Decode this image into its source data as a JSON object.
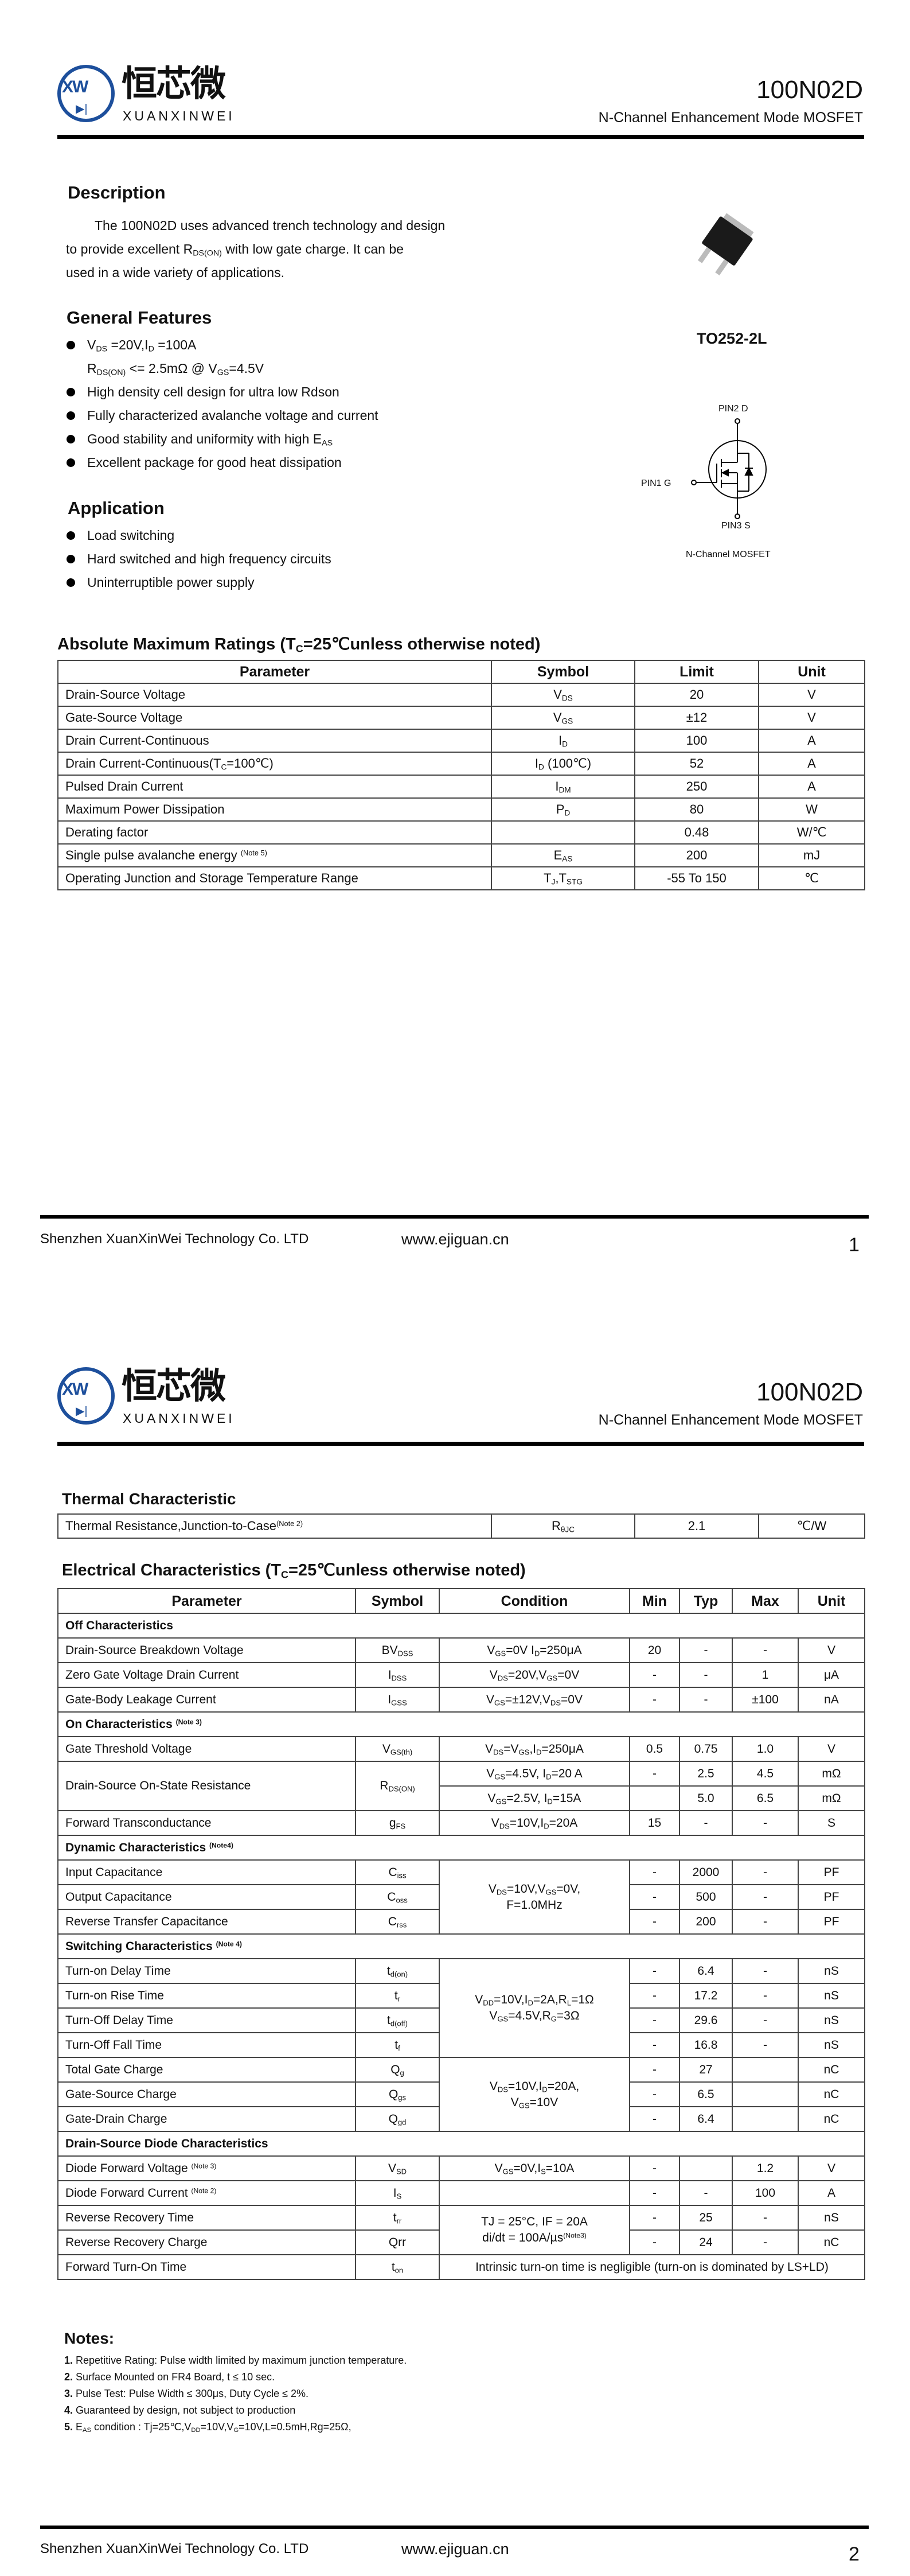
{
  "logo": {
    "abbr": "XW",
    "cn": "恒芯微",
    "en": "XUANXINWEI",
    "color": "#1d4f9c"
  },
  "header": {
    "part": "100N02D",
    "subtitle": "N-Channel Enhancement Mode MOSFET"
  },
  "description": {
    "heading": "Description",
    "lines": [
      "The 100N02D uses advanced trench technology and design",
      "to provide excellent R_{DS(ON)} with low gate charge. It can be",
      "used in a wide variety of applications."
    ]
  },
  "features": {
    "heading": "General Features",
    "items": [
      "V_{DS} =20V,I_{D} =100A",
      "R_{DS(ON)} <= 2.5mΩ @ V_{GS}=4.5V",
      "High density cell design for ultra low Rdson",
      "Fully characterized avalanche voltage and current",
      "Good stability and uniformity with high E_{AS}",
      "Excellent package for good heat dissipation"
    ]
  },
  "application": {
    "heading": "Application",
    "items": [
      "Load switching",
      "Hard switched and high frequency circuits",
      "Uninterruptible power supply"
    ]
  },
  "package": {
    "name": "TO252-2L",
    "pin_drain": "PIN2  D",
    "pin_gate": "PIN1  G",
    "pin_source": "PIN3 S",
    "caption": "N-Channel MOSFET"
  },
  "abs_max": {
    "heading": "Absolute Maximum Ratings (T_{C}=25℃unless otherwise noted)",
    "columns": [
      "Parameter",
      "Symbol",
      "Limit",
      "Unit"
    ],
    "rows": [
      [
        "Drain-Source Voltage",
        "V_{DS}",
        "20",
        "V"
      ],
      [
        "Gate-Source Voltage",
        "V_{GS}",
        "±12",
        "V"
      ],
      [
        "Drain Current-Continuous",
        "I_{D}",
        "100",
        "A"
      ],
      [
        "Drain Current-Continuous(T_{C}=100℃)",
        "I_{D} (100℃)",
        "52",
        "A"
      ],
      [
        "Pulsed Drain Current",
        "I_{DM}",
        "250",
        "A"
      ],
      [
        "Maximum Power Dissipation",
        "P_{D}",
        "80",
        "W"
      ],
      [
        "Derating factor",
        "",
        "0.48",
        "W/℃"
      ],
      [
        "Single pulse avalanche energy ^{(Note 5)}",
        "E_{AS}",
        "200",
        "mJ"
      ],
      [
        "Operating Junction and Storage Temperature Range",
        "T_{J},T_{STG}",
        "-55 To 150",
        "℃"
      ]
    ]
  },
  "thermal": {
    "heading": "Thermal Characteristic",
    "row": [
      "Thermal Resistance,Junction-to-Case^{(Note 2)}",
      "R_{θJC}",
      "2.1",
      "℃/W"
    ]
  },
  "electrical": {
    "heading": "Electrical Characteristics (T_{C}=25℃unless otherwise noted)",
    "columns": [
      "Parameter",
      "Symbol",
      "Condition",
      "Min",
      "Typ",
      "Max",
      "Unit"
    ],
    "rows": [
      {
        "section": "Off Characteristics"
      },
      {
        "c": [
          "Drain-Source Breakdown Voltage",
          "BV_{DSS}",
          "V_{GS}=0V I_{D}=250μA",
          "20",
          "-",
          "-",
          "V"
        ]
      },
      {
        "c": [
          "Zero Gate Voltage Drain Current",
          "I_{DSS}",
          "V_{DS}=20V,V_{GS}=0V",
          "-",
          "-",
          "1",
          "μA"
        ]
      },
      {
        "c": [
          "Gate-Body Leakage Current",
          "I_{GSS}",
          "V_{GS}=±12V,V_{DS}=0V",
          "-",
          "-",
          "±100",
          "nA"
        ]
      },
      {
        "section": "On Characteristics ^{(Note 3)}"
      },
      {
        "c": [
          "Gate Threshold Voltage",
          "V_{GS(th)}",
          "V_{DS}=V_{GS},I_{D}=250μA",
          "0.5",
          "0.75",
          "1.0",
          "V"
        ]
      },
      {
        "c": [
          "Drain-Source On-State Resistance",
          "R_{DS(ON)}",
          "V_{GS}=4.5V, I_{D}=20 A",
          "-",
          "2.5",
          "4.5",
          "mΩ"
        ],
        "rowspan": [
          2,
          2,
          1,
          1,
          1,
          1,
          1
        ]
      },
      {
        "c": [
          null,
          null,
          "V_{GS}=2.5V, I_{D}=15A",
          "",
          "5.0",
          "6.5",
          "mΩ"
        ]
      },
      {
        "c": [
          "Forward Transconductance",
          "g_{FS}",
          "V_{DS}=10V,I_{D}=20A",
          "15",
          "-",
          "-",
          "S"
        ]
      },
      {
        "section": "Dynamic Characteristics ^{(Note4)}"
      },
      {
        "c": [
          "Input Capacitance",
          "C_{iss}",
          "V_{DS}=10V,V_{GS}=0V,\nF=1.0MHz",
          "-",
          "2000",
          "-",
          "PF"
        ],
        "rowspan": [
          1,
          1,
          3,
          1,
          1,
          1,
          1
        ]
      },
      {
        "c": [
          "Output Capacitance",
          "C_{oss}",
          null,
          "-",
          "500",
          "-",
          "PF"
        ]
      },
      {
        "c": [
          "Reverse Transfer Capacitance",
          "C_{rss}",
          null,
          "-",
          "200",
          "-",
          "PF"
        ]
      },
      {
        "section": "Switching Characteristics ^{(Note 4)}"
      },
      {
        "c": [
          "Turn-on Delay Time",
          "t_{d(on)}",
          "V_{DD}=10V,I_{D}=2A,R_{L}=1Ω\nV_{GS}=4.5V,R_{G}=3Ω",
          "-",
          "6.4",
          "-",
          "nS"
        ],
        "rowspan": [
          1,
          1,
          4,
          1,
          1,
          1,
          1
        ]
      },
      {
        "c": [
          "Turn-on Rise Time",
          "t_{r}",
          null,
          "-",
          "17.2",
          "-",
          "nS"
        ]
      },
      {
        "c": [
          "Turn-Off Delay Time",
          "t_{d(off)}",
          null,
          "-",
          "29.6",
          "-",
          "nS"
        ]
      },
      {
        "c": [
          "Turn-Off Fall Time",
          "t_{f}",
          null,
          "-",
          "16.8",
          "-",
          "nS"
        ]
      },
      {
        "c": [
          "Total Gate Charge",
          "Q_{g}",
          "V_{DS}=10V,I_{D}=20A,\nV_{GS}=10V",
          "-",
          "27",
          "",
          "nC"
        ],
        "rowspan": [
          1,
          1,
          3,
          1,
          1,
          1,
          1
        ]
      },
      {
        "c": [
          "Gate-Source Charge",
          "Q_{gs}",
          null,
          "-",
          "6.5",
          "",
          "nC"
        ]
      },
      {
        "c": [
          "Gate-Drain Charge",
          "Q_{gd}",
          null,
          "-",
          "6.4",
          "",
          "nC"
        ]
      },
      {
        "section": "Drain-Source Diode Characteristics"
      },
      {
        "c": [
          "Diode Forward Voltage ^{(Note 3)}",
          "V_{SD}",
          "V_{GS}=0V,I_{S}=10A",
          "-",
          "",
          "1.2",
          "V"
        ]
      },
      {
        "c": [
          "Diode Forward Current ^{(Note 2)}",
          "I_{S}",
          "",
          "-",
          "-",
          "100",
          "A"
        ]
      },
      {
        "c": [
          "Reverse Recovery Time",
          "t_{rr}",
          "TJ = 25°C, IF = 20A\ndi/dt = 100A/µs^{(Note3)}",
          "-",
          "25",
          "-",
          "nS"
        ],
        "rowspan": [
          1,
          1,
          2,
          1,
          1,
          1,
          1
        ]
      },
      {
        "c": [
          "Reverse Recovery Charge",
          "Qrr",
          null,
          "-",
          "24",
          "-",
          "nC"
        ]
      },
      {
        "c": [
          "Forward Turn-On Time",
          "t_{on}",
          "Intrinsic turn-on time is negligible (turn-on is dominated by LS+LD)"
        ],
        "colspan": [
          1,
          1,
          5
        ]
      }
    ]
  },
  "notes": {
    "heading": "Notes:",
    "items": [
      [
        "1.",
        "Repetitive Rating: Pulse width limited by maximum junction temperature."
      ],
      [
        "2.",
        "Surface Mounted on FR4 Board, t ≤ 10 sec."
      ],
      [
        "3.",
        "Pulse Test: Pulse Width ≤ 300μs, Duty Cycle ≤ 2%."
      ],
      [
        "4.",
        "Guaranteed by design, not subject to production"
      ],
      [
        "5.",
        "E_{AS} condition : Tj=25℃,V_{DD}=10V,V_{G}=10V,L=0.5mH,Rg=25Ω,"
      ]
    ]
  },
  "footer": {
    "company": "Shenzhen XuanXinWei Technology Co. LTD",
    "website": "www.ejiguan.cn",
    "pages": [
      "1",
      "2"
    ]
  }
}
